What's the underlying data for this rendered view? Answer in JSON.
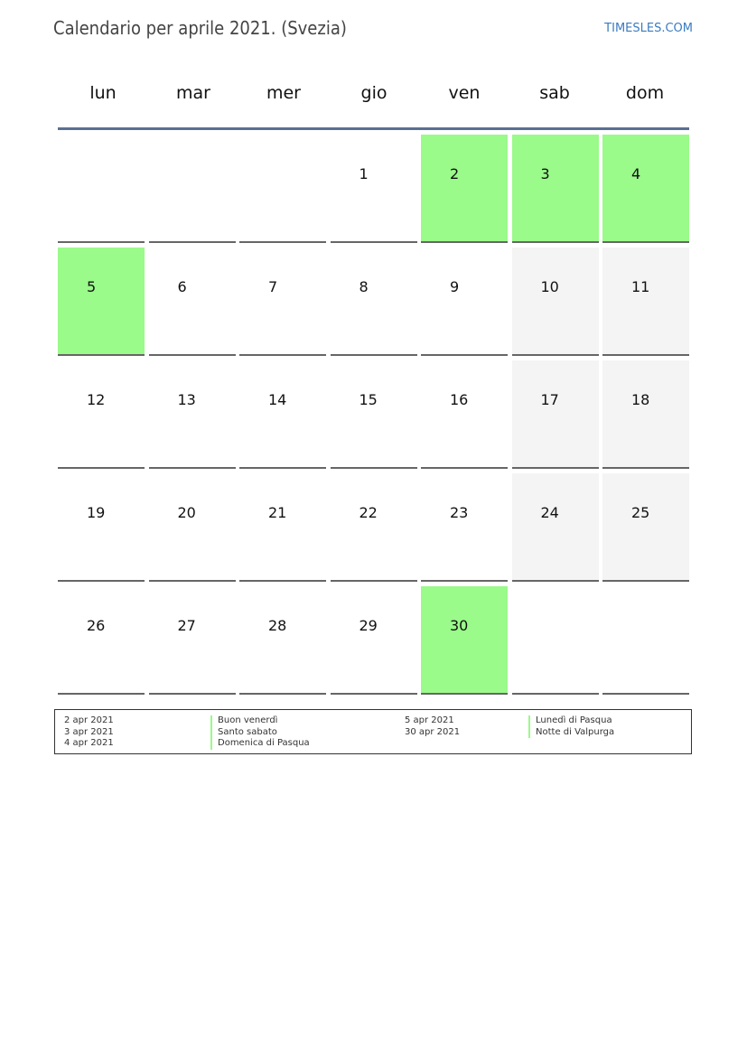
{
  "header": {
    "title": "Calendario per aprile 2021. (Svezia)",
    "brand": "TIMESLES.COM"
  },
  "weekdays": [
    "lun",
    "mar",
    "mer",
    "gio",
    "ven",
    "sab",
    "dom"
  ],
  "colors": {
    "holiday": "#9afa8a",
    "weekend": "#f4f4f4",
    "rule": "#5a7090"
  },
  "cells": [
    {
      "day": "",
      "type": ""
    },
    {
      "day": "",
      "type": ""
    },
    {
      "day": "",
      "type": ""
    },
    {
      "day": "1",
      "type": ""
    },
    {
      "day": "2",
      "type": "holiday"
    },
    {
      "day": "3",
      "type": "holiday"
    },
    {
      "day": "4",
      "type": "holiday"
    },
    {
      "day": "5",
      "type": "holiday"
    },
    {
      "day": "6",
      "type": ""
    },
    {
      "day": "7",
      "type": ""
    },
    {
      "day": "8",
      "type": ""
    },
    {
      "day": "9",
      "type": ""
    },
    {
      "day": "10",
      "type": "weekend"
    },
    {
      "day": "11",
      "type": "weekend"
    },
    {
      "day": "12",
      "type": ""
    },
    {
      "day": "13",
      "type": ""
    },
    {
      "day": "14",
      "type": ""
    },
    {
      "day": "15",
      "type": ""
    },
    {
      "day": "16",
      "type": ""
    },
    {
      "day": "17",
      "type": "weekend"
    },
    {
      "day": "18",
      "type": "weekend"
    },
    {
      "day": "19",
      "type": ""
    },
    {
      "day": "20",
      "type": ""
    },
    {
      "day": "21",
      "type": ""
    },
    {
      "day": "22",
      "type": ""
    },
    {
      "day": "23",
      "type": ""
    },
    {
      "day": "24",
      "type": "weekend"
    },
    {
      "day": "25",
      "type": "weekend"
    },
    {
      "day": "26",
      "type": ""
    },
    {
      "day": "27",
      "type": ""
    },
    {
      "day": "28",
      "type": ""
    },
    {
      "day": "29",
      "type": ""
    },
    {
      "day": "30",
      "type": "holiday"
    },
    {
      "day": "",
      "type": ""
    },
    {
      "day": "",
      "type": ""
    }
  ],
  "legend": {
    "left": [
      {
        "date": "2 apr 2021",
        "name": "Buon venerdì"
      },
      {
        "date": "3 apr 2021",
        "name": "Santo sabato"
      },
      {
        "date": "4 apr 2021",
        "name": "Domenica di Pasqua"
      }
    ],
    "right": [
      {
        "date": "5 apr 2021",
        "name": "Lunedì di Pasqua"
      },
      {
        "date": "30 apr 2021",
        "name": "Notte di Valpurga"
      }
    ]
  }
}
